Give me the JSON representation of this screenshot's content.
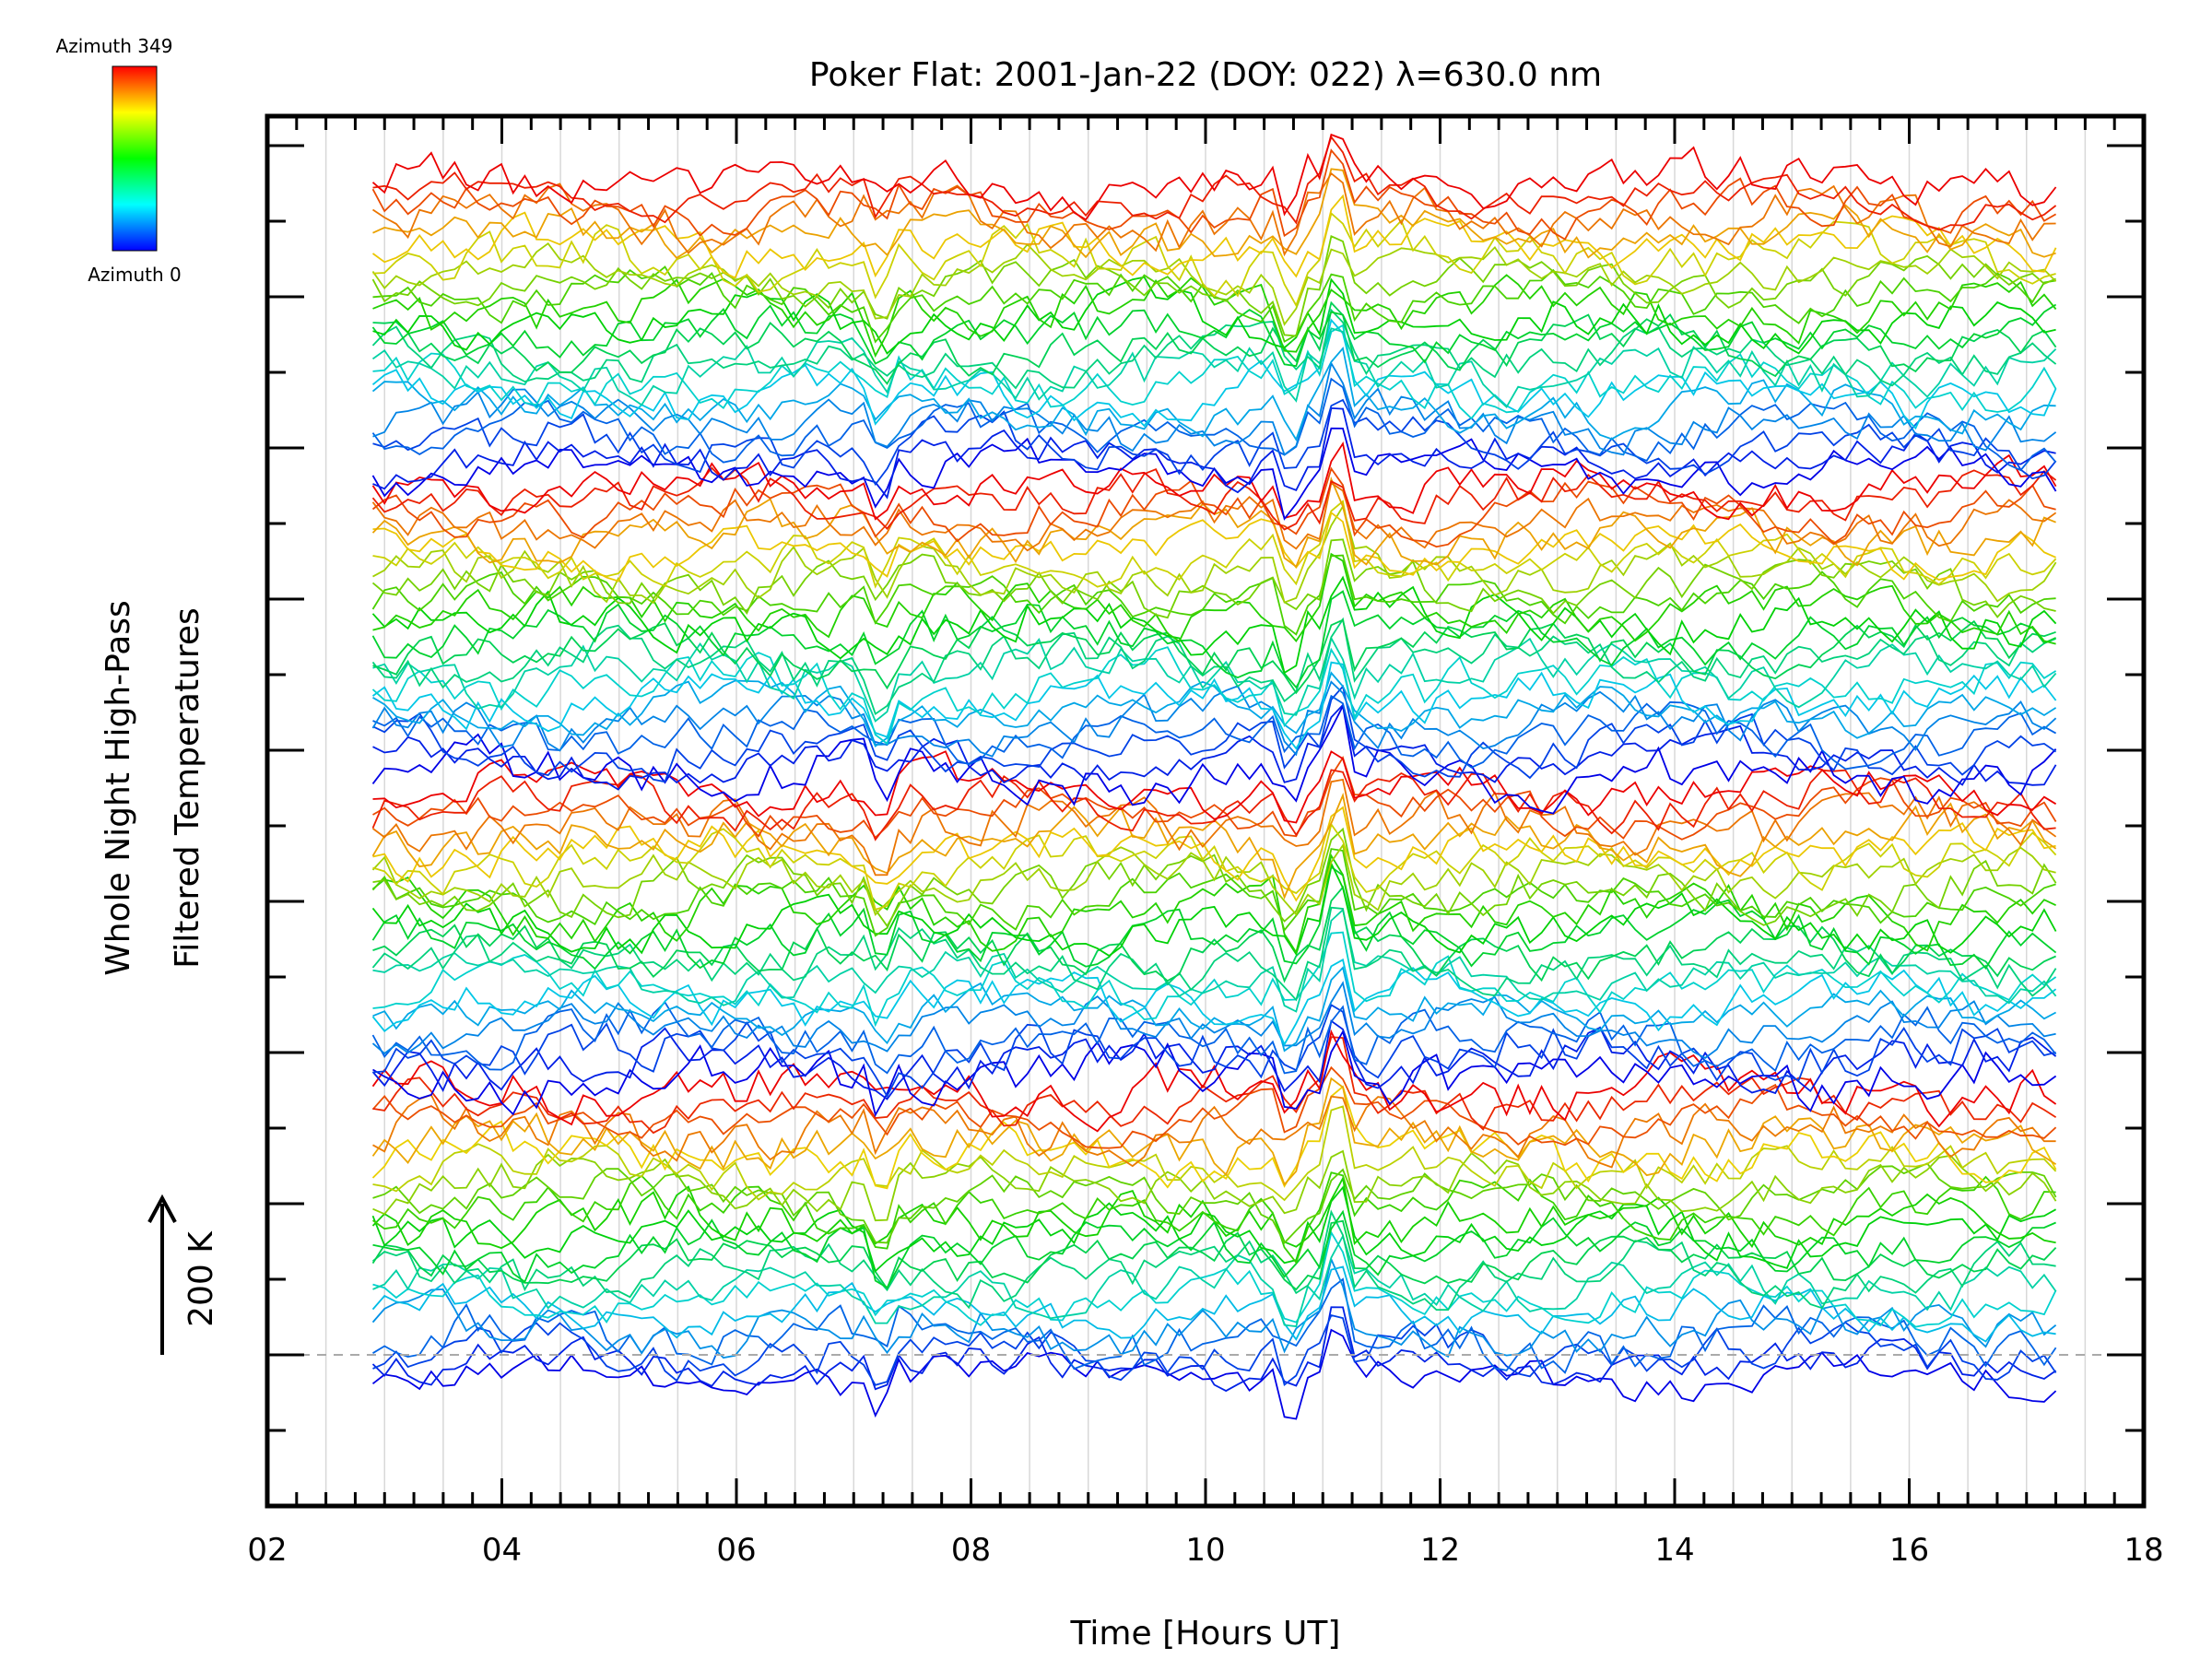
{
  "chart_data": {
    "type": "line",
    "title": "Poker Flat: 2001-Jan-22 (DOY: 022) λ=630.0 nm",
    "xlabel": "Time [Hours UT]",
    "ylabel_line1": "Whole Night High-Pass",
    "ylabel_line2": "Filtered Temperatures",
    "xlim": [
      2,
      18
    ],
    "x_ticks": [
      "02",
      "04",
      "06",
      "08",
      "10",
      "12",
      "14",
      "16",
      "18"
    ],
    "x_start": 2.9,
    "x_end": 17.25,
    "n_points": 145,
    "scale_bar_label": "200 K",
    "scale_bar_value_K": 200,
    "colorbar": {
      "top_label": "Azimuth 349",
      "bottom_label": "Azimuth 0",
      "azimuth_min": 0,
      "azimuth_max": 349,
      "colormap": "rainbow (blue → green → yellow → red)"
    },
    "grid": "vertical lines every 0.5 h",
    "baseline": "dashed horizontal line at bottom trace offset",
    "series_groups": [
      {
        "offset_K": 0,
        "azimuths": [
          0,
          14,
          27,
          42,
          60,
          78,
          96,
          112,
          128,
          144,
          158,
          170,
          182,
          195,
          210,
          226,
          244,
          262,
          280,
          298,
          316,
          333,
          349
        ]
      },
      {
        "offset_K": 400,
        "azimuths": [
          0,
          13,
          27,
          41,
          55,
          69,
          83,
          97,
          112,
          127,
          142,
          157,
          172,
          187,
          202,
          218,
          234,
          250,
          266,
          282,
          300,
          318,
          336,
          349
        ]
      },
      {
        "offset_K": 800,
        "azimuths": [
          0,
          13,
          27,
          41,
          55,
          69,
          83,
          97,
          112,
          127,
          142,
          157,
          172,
          187,
          202,
          218,
          234,
          250,
          266,
          282,
          300,
          318,
          336,
          349
        ]
      },
      {
        "offset_K": 1200,
        "azimuths": [
          0,
          13,
          27,
          41,
          55,
          69,
          83,
          97,
          112,
          127,
          142,
          157,
          172,
          187,
          202,
          218,
          234,
          250,
          266,
          282,
          300,
          318,
          336,
          349
        ]
      }
    ]
  }
}
